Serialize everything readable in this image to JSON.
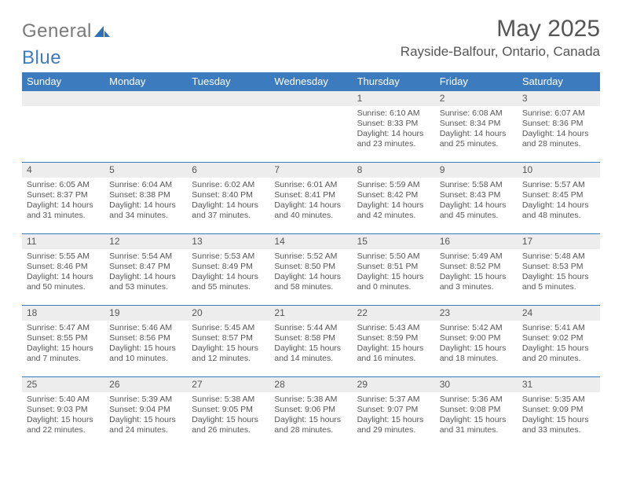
{
  "logo": {
    "word1": "General",
    "word2": "Blue"
  },
  "title": "May 2025",
  "location": "Rayside-Balfour, Ontario, Canada",
  "colors": {
    "header_bg": "#3d7bbf",
    "header_fg": "#ffffff",
    "daynum_bg": "#ededed",
    "row_border": "#3d7bbf",
    "text": "#555555",
    "logo_gray": "#7a7a7a",
    "logo_blue": "#3d7bbf",
    "page_bg": "#ffffff"
  },
  "weekdays": [
    "Sunday",
    "Monday",
    "Tuesday",
    "Wednesday",
    "Thursday",
    "Friday",
    "Saturday"
  ],
  "weeks": [
    [
      {
        "day": ""
      },
      {
        "day": ""
      },
      {
        "day": ""
      },
      {
        "day": ""
      },
      {
        "day": "1",
        "sunrise": "Sunrise: 6:10 AM",
        "sunset": "Sunset: 8:33 PM",
        "daylight": "Daylight: 14 hours and 23 minutes."
      },
      {
        "day": "2",
        "sunrise": "Sunrise: 6:08 AM",
        "sunset": "Sunset: 8:34 PM",
        "daylight": "Daylight: 14 hours and 25 minutes."
      },
      {
        "day": "3",
        "sunrise": "Sunrise: 6:07 AM",
        "sunset": "Sunset: 8:36 PM",
        "daylight": "Daylight: 14 hours and 28 minutes."
      }
    ],
    [
      {
        "day": "4",
        "sunrise": "Sunrise: 6:05 AM",
        "sunset": "Sunset: 8:37 PM",
        "daylight": "Daylight: 14 hours and 31 minutes."
      },
      {
        "day": "5",
        "sunrise": "Sunrise: 6:04 AM",
        "sunset": "Sunset: 8:38 PM",
        "daylight": "Daylight: 14 hours and 34 minutes."
      },
      {
        "day": "6",
        "sunrise": "Sunrise: 6:02 AM",
        "sunset": "Sunset: 8:40 PM",
        "daylight": "Daylight: 14 hours and 37 minutes."
      },
      {
        "day": "7",
        "sunrise": "Sunrise: 6:01 AM",
        "sunset": "Sunset: 8:41 PM",
        "daylight": "Daylight: 14 hours and 40 minutes."
      },
      {
        "day": "8",
        "sunrise": "Sunrise: 5:59 AM",
        "sunset": "Sunset: 8:42 PM",
        "daylight": "Daylight: 14 hours and 42 minutes."
      },
      {
        "day": "9",
        "sunrise": "Sunrise: 5:58 AM",
        "sunset": "Sunset: 8:43 PM",
        "daylight": "Daylight: 14 hours and 45 minutes."
      },
      {
        "day": "10",
        "sunrise": "Sunrise: 5:57 AM",
        "sunset": "Sunset: 8:45 PM",
        "daylight": "Daylight: 14 hours and 48 minutes."
      }
    ],
    [
      {
        "day": "11",
        "sunrise": "Sunrise: 5:55 AM",
        "sunset": "Sunset: 8:46 PM",
        "daylight": "Daylight: 14 hours and 50 minutes."
      },
      {
        "day": "12",
        "sunrise": "Sunrise: 5:54 AM",
        "sunset": "Sunset: 8:47 PM",
        "daylight": "Daylight: 14 hours and 53 minutes."
      },
      {
        "day": "13",
        "sunrise": "Sunrise: 5:53 AM",
        "sunset": "Sunset: 8:49 PM",
        "daylight": "Daylight: 14 hours and 55 minutes."
      },
      {
        "day": "14",
        "sunrise": "Sunrise: 5:52 AM",
        "sunset": "Sunset: 8:50 PM",
        "daylight": "Daylight: 14 hours and 58 minutes."
      },
      {
        "day": "15",
        "sunrise": "Sunrise: 5:50 AM",
        "sunset": "Sunset: 8:51 PM",
        "daylight": "Daylight: 15 hours and 0 minutes."
      },
      {
        "day": "16",
        "sunrise": "Sunrise: 5:49 AM",
        "sunset": "Sunset: 8:52 PM",
        "daylight": "Daylight: 15 hours and 3 minutes."
      },
      {
        "day": "17",
        "sunrise": "Sunrise: 5:48 AM",
        "sunset": "Sunset: 8:53 PM",
        "daylight": "Daylight: 15 hours and 5 minutes."
      }
    ],
    [
      {
        "day": "18",
        "sunrise": "Sunrise: 5:47 AM",
        "sunset": "Sunset: 8:55 PM",
        "daylight": "Daylight: 15 hours and 7 minutes."
      },
      {
        "day": "19",
        "sunrise": "Sunrise: 5:46 AM",
        "sunset": "Sunset: 8:56 PM",
        "daylight": "Daylight: 15 hours and 10 minutes."
      },
      {
        "day": "20",
        "sunrise": "Sunrise: 5:45 AM",
        "sunset": "Sunset: 8:57 PM",
        "daylight": "Daylight: 15 hours and 12 minutes."
      },
      {
        "day": "21",
        "sunrise": "Sunrise: 5:44 AM",
        "sunset": "Sunset: 8:58 PM",
        "daylight": "Daylight: 15 hours and 14 minutes."
      },
      {
        "day": "22",
        "sunrise": "Sunrise: 5:43 AM",
        "sunset": "Sunset: 8:59 PM",
        "daylight": "Daylight: 15 hours and 16 minutes."
      },
      {
        "day": "23",
        "sunrise": "Sunrise: 5:42 AM",
        "sunset": "Sunset: 9:00 PM",
        "daylight": "Daylight: 15 hours and 18 minutes."
      },
      {
        "day": "24",
        "sunrise": "Sunrise: 5:41 AM",
        "sunset": "Sunset: 9:02 PM",
        "daylight": "Daylight: 15 hours and 20 minutes."
      }
    ],
    [
      {
        "day": "25",
        "sunrise": "Sunrise: 5:40 AM",
        "sunset": "Sunset: 9:03 PM",
        "daylight": "Daylight: 15 hours and 22 minutes."
      },
      {
        "day": "26",
        "sunrise": "Sunrise: 5:39 AM",
        "sunset": "Sunset: 9:04 PM",
        "daylight": "Daylight: 15 hours and 24 minutes."
      },
      {
        "day": "27",
        "sunrise": "Sunrise: 5:38 AM",
        "sunset": "Sunset: 9:05 PM",
        "daylight": "Daylight: 15 hours and 26 minutes."
      },
      {
        "day": "28",
        "sunrise": "Sunrise: 5:38 AM",
        "sunset": "Sunset: 9:06 PM",
        "daylight": "Daylight: 15 hours and 28 minutes."
      },
      {
        "day": "29",
        "sunrise": "Sunrise: 5:37 AM",
        "sunset": "Sunset: 9:07 PM",
        "daylight": "Daylight: 15 hours and 29 minutes."
      },
      {
        "day": "30",
        "sunrise": "Sunrise: 5:36 AM",
        "sunset": "Sunset: 9:08 PM",
        "daylight": "Daylight: 15 hours and 31 minutes."
      },
      {
        "day": "31",
        "sunrise": "Sunrise: 5:35 AM",
        "sunset": "Sunset: 9:09 PM",
        "daylight": "Daylight: 15 hours and 33 minutes."
      }
    ]
  ]
}
